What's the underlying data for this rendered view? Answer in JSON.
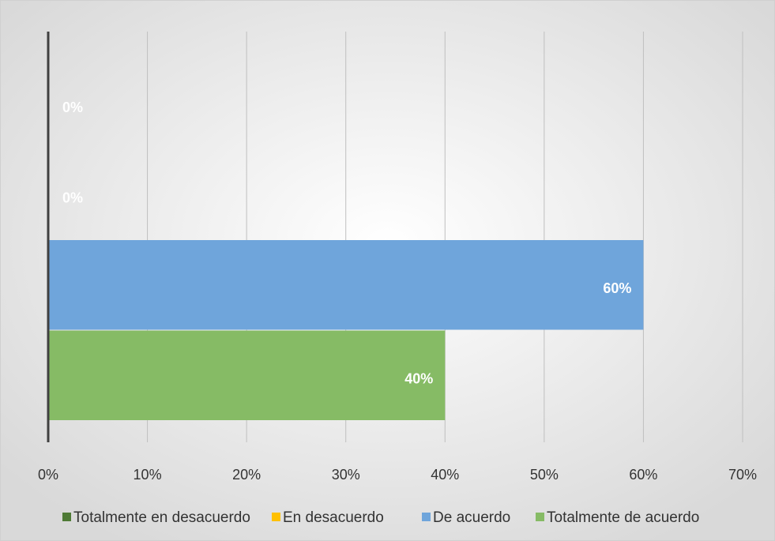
{
  "chart_data": {
    "type": "bar",
    "orientation": "horizontal",
    "categories": [
      null
    ],
    "series": [
      {
        "name": "Totalmente en desacuerdo",
        "color": "#4e7a35",
        "values": [
          0
        ],
        "value_labels": [
          "0%"
        ]
      },
      {
        "name": "En desacuerdo",
        "color": "#ffc000",
        "values": [
          0
        ],
        "value_labels": [
          "0%"
        ]
      },
      {
        "name": "De acuerdo",
        "color": "#6fa5db",
        "values": [
          60
        ],
        "value_labels": [
          "60%"
        ]
      },
      {
        "name": "Totalmente de acuerdo",
        "color": "#86bb65",
        "values": [
          40
        ],
        "value_labels": [
          "40%"
        ]
      }
    ],
    "xlim": [
      0,
      70
    ],
    "xticks": [
      {
        "value": 0,
        "label": "0%"
      },
      {
        "value": 10,
        "label": "10%"
      },
      {
        "value": 20,
        "label": "20%"
      },
      {
        "value": 30,
        "label": "30%"
      },
      {
        "value": 40,
        "label": "40%"
      },
      {
        "value": 50,
        "label": "50%"
      },
      {
        "value": 60,
        "label": "60%"
      },
      {
        "value": 70,
        "label": "70%"
      }
    ],
    "grid": true,
    "legend": "bottom"
  }
}
